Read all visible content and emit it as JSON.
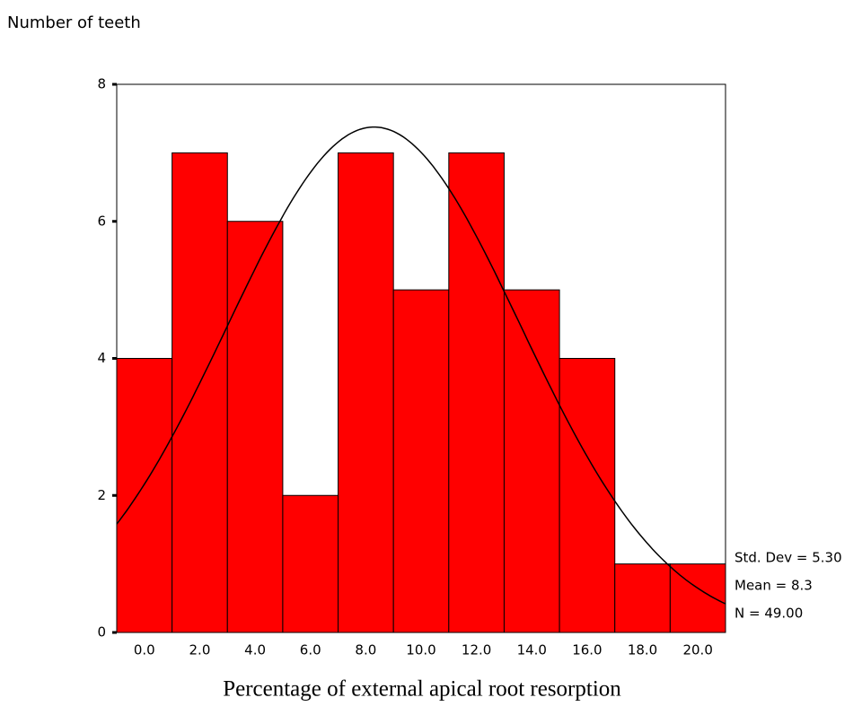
{
  "chart_data": {
    "type": "histogram",
    "y_label": "Number of teeth",
    "x_label": "Percentage of external apical root resorption",
    "bins": [
      -1,
      1,
      3,
      5,
      7,
      9,
      11,
      13,
      15,
      17,
      19,
      21
    ],
    "counts": [
      4,
      7,
      6,
      2,
      7,
      5,
      7,
      5,
      4,
      1,
      1
    ],
    "color": "#ff0000",
    "xlim": [
      -1,
      21
    ],
    "xticks": [
      {
        "value": 0,
        "label": "0.0"
      },
      {
        "value": 2,
        "label": "2.0"
      },
      {
        "value": 4,
        "label": "4.0"
      },
      {
        "value": 6,
        "label": "6.0"
      },
      {
        "value": 8,
        "label": "8.0"
      },
      {
        "value": 10,
        "label": "10.0"
      },
      {
        "value": 12,
        "label": "12.0"
      },
      {
        "value": 14,
        "label": "14.0"
      },
      {
        "value": 16,
        "label": "16.0"
      },
      {
        "value": 18,
        "label": "18.0"
      },
      {
        "value": 20,
        "label": "20.0"
      }
    ],
    "ylim": [
      0,
      8
    ],
    "yticks": [
      0,
      2,
      4,
      6,
      8
    ],
    "normal_curve": {
      "std_dev": 5.3,
      "mean": 8.3,
      "n": 49
    },
    "annotations": [
      "Std. Dev = 5.30",
      "Mean = 8.3",
      "N = 49.00"
    ]
  }
}
